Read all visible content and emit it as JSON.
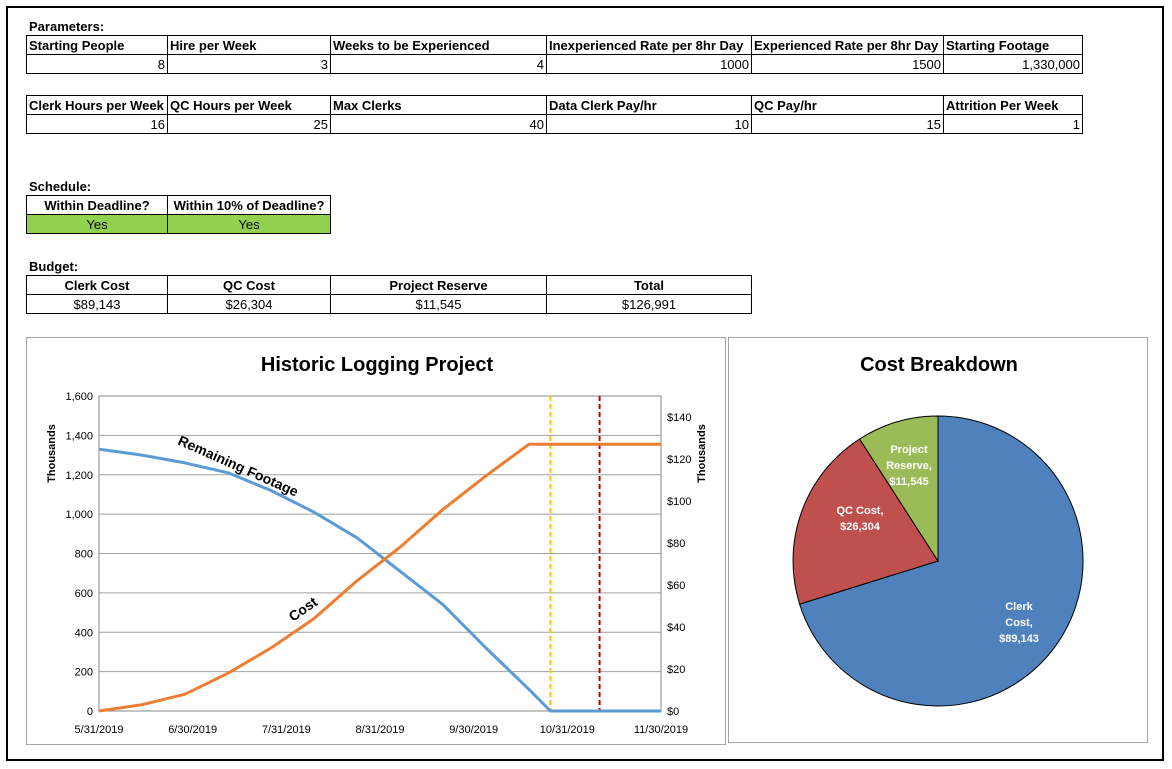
{
  "parameters": {
    "label": "Parameters:",
    "row1": [
      {
        "header": "Starting People",
        "value": "8"
      },
      {
        "header": "Hire per Week",
        "value": "3"
      },
      {
        "header": "Weeks to be Experienced",
        "value": "4"
      },
      {
        "header": "Inexperienced Rate per 8hr Day",
        "value": "1000"
      },
      {
        "header": "Experienced Rate per 8hr Day",
        "value": "1500"
      },
      {
        "header": "Starting Footage",
        "value": "1,330,000"
      }
    ],
    "row2": [
      {
        "header": "Clerk Hours per Week",
        "value": "16"
      },
      {
        "header": "QC Hours per Week",
        "value": "25"
      },
      {
        "header": "Max Clerks",
        "value": "40"
      },
      {
        "header": "Data Clerk Pay/hr",
        "value": "10"
      },
      {
        "header": "QC Pay/hr",
        "value": "15"
      },
      {
        "header": "Attrition Per Week",
        "value": "1"
      }
    ]
  },
  "schedule": {
    "label": "Schedule:",
    "columns": [
      {
        "header": "Within Deadline?",
        "value": "Yes"
      },
      {
        "header": "Within 10% of Deadline?",
        "value": "Yes"
      }
    ],
    "status_color": "#92d050"
  },
  "budget": {
    "label": "Budget:",
    "columns": [
      {
        "header": "Clerk Cost",
        "value": "$89,143"
      },
      {
        "header": "QC Cost",
        "value": "$26,304"
      },
      {
        "header": "Project Reserve",
        "value": "$11,545"
      },
      {
        "header": "Total",
        "value": "$126,991"
      }
    ]
  },
  "chart_data": [
    {
      "type": "line",
      "title": "Historic Logging Project",
      "ylabel": "Thousands",
      "y2label": "Thousands",
      "x_ticks": [
        "5/31/2019",
        "6/30/2019",
        "7/31/2019",
        "8/31/2019",
        "9/30/2019",
        "10/31/2019",
        "11/30/2019"
      ],
      "xlim": [
        "2019-05-31",
        "2019-11-30"
      ],
      "ylim": [
        0,
        1600
      ],
      "y_ticks": [
        "0",
        "200",
        "400",
        "600",
        "800",
        "1,000",
        "1,200",
        "1,400",
        "1,600"
      ],
      "y2lim": [
        0,
        150
      ],
      "y2_ticks": [
        "$0",
        "$20",
        "$40",
        "$60",
        "$80",
        "$100",
        "$120",
        "$140"
      ],
      "grid": true,
      "series": [
        {
          "name": "Remaining Footage",
          "axis": "left",
          "color": "#5b9bd5",
          "points": [
            [
              "2019-05-31",
              1330
            ],
            [
              "2019-06-14",
              1300
            ],
            [
              "2019-06-28",
              1260
            ],
            [
              "2019-07-12",
              1210
            ],
            [
              "2019-07-26",
              1120
            ],
            [
              "2019-08-09",
              1010
            ],
            [
              "2019-08-23",
              880
            ],
            [
              "2019-09-06",
              710
            ],
            [
              "2019-09-20",
              540
            ],
            [
              "2019-10-04",
              320
            ],
            [
              "2019-10-18",
              110
            ],
            [
              "2019-10-25",
              0
            ],
            [
              "2019-11-30",
              0
            ]
          ]
        },
        {
          "name": "Cost",
          "axis": "right",
          "color": "#ed7d31",
          "points": [
            [
              "2019-05-31",
              0
            ],
            [
              "2019-06-14",
              3
            ],
            [
              "2019-06-28",
              8
            ],
            [
              "2019-07-12",
              18
            ],
            [
              "2019-07-26",
              30
            ],
            [
              "2019-08-09",
              44
            ],
            [
              "2019-08-23",
              62
            ],
            [
              "2019-09-06",
              78
            ],
            [
              "2019-09-20",
              96
            ],
            [
              "2019-10-04",
              112
            ],
            [
              "2019-10-18",
              127
            ],
            [
              "2019-10-25",
              127
            ],
            [
              "2019-11-30",
              127
            ]
          ]
        }
      ],
      "markers": [
        {
          "date": "2019-10-25",
          "color": "#ffc000",
          "style": "dashed"
        },
        {
          "date": "2019-11-10",
          "color": "#c00000",
          "style": "dashed"
        }
      ]
    },
    {
      "type": "pie",
      "title": "Cost Breakdown",
      "slices": [
        {
          "label": "Clerk Cost,",
          "value_label": "$89,143",
          "value": 89143,
          "color": "#4f81bd"
        },
        {
          "label": "QC Cost,",
          "value_label": "$26,304",
          "value": 26304,
          "color": "#c0504d"
        },
        {
          "label": "Project Reserve,",
          "value_label": "$11,545",
          "value": 11545,
          "color": "#9bbb59"
        }
      ]
    }
  ]
}
